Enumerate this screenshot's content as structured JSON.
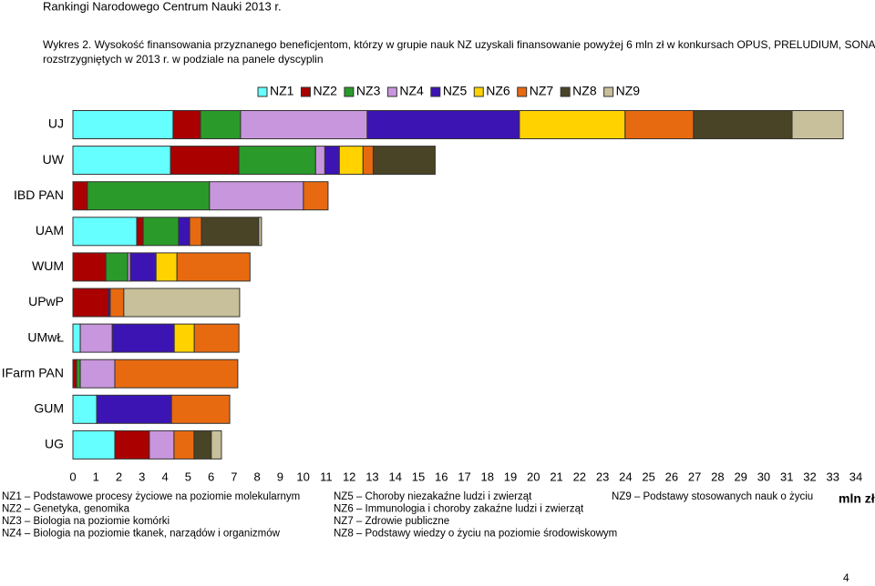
{
  "header": {
    "title": "Rankingi Narodowego Centrum Nauki 2013 r."
  },
  "caption": [
    "Wykres 2. Wysokość finansowania przyznanego beneficjentom, którzy w grupie nauk NZ uzyskali finansowanie powyżej 6 mln zł w konkursach OPUS, PRELUDIUM, SONATA",
    "rozstrzygniętych w 2013 r. w podziale na panele dyscyplin"
  ],
  "chart_data": {
    "type": "hbar-stacked",
    "categories": [
      "UJ",
      "UW",
      "IBD PAN",
      "UAM",
      "WUM",
      "UPwP",
      "UMwŁ",
      "IFarm PAN",
      "GUM",
      "UG"
    ],
    "series": [
      {
        "name": "NZ1",
        "color": "#66ffff",
        "values": [
          4.35,
          4.24,
          0,
          2.77,
          0,
          0,
          0.32,
          0,
          1.03,
          1.82
        ]
      },
      {
        "name": "NZ2",
        "color": "#aa0000",
        "values": [
          1.19,
          2.97,
          0.63,
          0.28,
          1.43,
          1.54,
          0,
          0.16,
          0,
          1.5
        ]
      },
      {
        "name": "NZ3",
        "color": "#2a9a2a",
        "values": [
          1.74,
          3.33,
          5.3,
          1.54,
          0.95,
          0,
          0,
          0.16,
          0,
          0
        ]
      },
      {
        "name": "NZ4",
        "color": "#c896dc",
        "values": [
          5.5,
          0.4,
          4.08,
          0,
          0.12,
          0,
          1.39,
          1.5,
          0,
          1.07
        ]
      },
      {
        "name": "NZ5",
        "color": "#3c14b4",
        "values": [
          6.61,
          0.63,
          0,
          0.48,
          1.11,
          0.08,
          2.69,
          0,
          3.25,
          0
        ]
      },
      {
        "name": "NZ6",
        "color": "#ffd200",
        "values": [
          4.59,
          1.03,
          0,
          0,
          0.91,
          0,
          0.87,
          0,
          0,
          0
        ]
      },
      {
        "name": "NZ7",
        "color": "#e86a10",
        "values": [
          2.97,
          0.44,
          1.07,
          0.51,
          3.17,
          0.59,
          1.94,
          5.34,
          2.53,
          0.87
        ]
      },
      {
        "name": "NZ8",
        "color": "#4a4426",
        "values": [
          4.28,
          2.69,
          0,
          2.49,
          0,
          0,
          0,
          0,
          0,
          0.75
        ]
      },
      {
        "name": "NZ9",
        "color": "#c8c09a",
        "values": [
          2.22,
          0,
          0,
          0.12,
          0,
          5.03,
          0,
          0,
          0,
          0.44
        ]
      }
    ],
    "xlim": [
      0,
      34
    ],
    "xticks": [
      0,
      1,
      2,
      3,
      4,
      5,
      6,
      7,
      8,
      9,
      10,
      11,
      12,
      13,
      14,
      15,
      16,
      17,
      18,
      19,
      20,
      21,
      22,
      23,
      24,
      25,
      26,
      27,
      28,
      29,
      30,
      31,
      32,
      33,
      34
    ],
    "xlabel": "mln zł",
    "legend": "top"
  },
  "notes": [
    "NZ1 – Podstawowe procesy życiowe na poziomie molekularnym",
    "NZ2 – Genetyka, genomika",
    "NZ3 – Biologia na poziomie komórki",
    "NZ4 – Biologia na poziomie tkanek, narządów i organizmów",
    "NZ5 – Choroby niezakaźne ludzi i zwierząt",
    "NZ6 – Immunologia i choroby zakaźne ludzi i zwierząt",
    "NZ7 – Zdrowie publiczne",
    "NZ8 – Podstawy wiedzy o życiu na poziomie środowiskowym",
    "NZ9 – Podstawy stosowanych nauk o życiu"
  ],
  "page_number": "4"
}
